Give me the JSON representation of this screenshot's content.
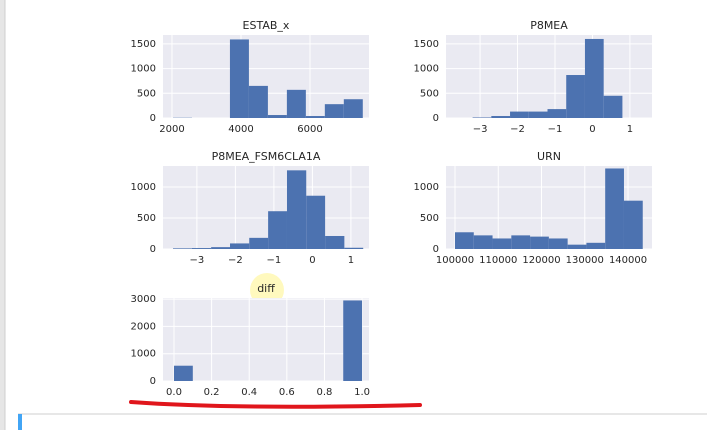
{
  "chart_data": [
    {
      "type": "histogram",
      "title": "ESTAB_x",
      "bins": [
        2030,
        2580,
        3130,
        3680,
        4230,
        4780,
        5330,
        5880,
        6430,
        6980,
        7530
      ],
      "values": [
        5,
        0,
        0,
        1590,
        650,
        60,
        570,
        40,
        280,
        380
      ],
      "color": "#4c72b0",
      "xlim": [
        1740,
        7710
      ],
      "ylim": [
        0,
        1680
      ],
      "xticks": [
        2000,
        4000,
        6000
      ],
      "yticks": [
        0,
        500,
        1000,
        1500
      ],
      "grid": true
    },
    {
      "type": "histogram",
      "title": "P8MEA",
      "bins": [
        -3.2,
        -2.7,
        -2.2,
        -1.7,
        -1.2,
        -0.7,
        -0.2,
        0.3,
        0.8
      ],
      "values": [
        10,
        40,
        130,
        130,
        180,
        870,
        1600,
        450
      ],
      "color": "#4c72b0",
      "xlim": [
        -3.91,
        1.59
      ],
      "ylim": [
        0,
        1680
      ],
      "xticks": [
        {
          "value": -3,
          "label": "−3"
        },
        {
          "value": -2,
          "label": "−2"
        },
        {
          "value": -1,
          "label": "−1"
        },
        0,
        1
      ],
      "yticks": [
        0,
        500,
        1000,
        1500
      ],
      "grid": true
    },
    {
      "type": "histogram",
      "title": "P8MEA_FSM6CLA1A",
      "bins": [
        -3.62,
        -3.13,
        -2.63,
        -2.14,
        -1.64,
        -1.15,
        -0.66,
        -0.16,
        0.33,
        0.83,
        1.32
      ],
      "values": [
        10,
        15,
        30,
        90,
        180,
        610,
        1270,
        860,
        210,
        20
      ],
      "color": "#4c72b0",
      "xlim": [
        -3.88,
        1.47
      ],
      "ylim": [
        0,
        1340
      ],
      "xticks": [
        {
          "value": -3,
          "label": "−3"
        },
        {
          "value": -2,
          "label": "−2"
        },
        {
          "value": -1,
          "label": "−1"
        },
        0,
        1
      ],
      "yticks": [
        0,
        500,
        1000
      ],
      "grid": true
    },
    {
      "type": "histogram",
      "title": "URN",
      "bins": [
        100000,
        104340,
        108680,
        113020,
        117360,
        121700,
        126040,
        130380,
        134720,
        139060,
        143400
      ],
      "values": [
        270,
        220,
        170,
        220,
        200,
        170,
        70,
        100,
        1300,
        780
      ],
      "color": "#4c72b0",
      "xlim": [
        97920,
        145540
      ],
      "ylim": [
        0,
        1340
      ],
      "xticks": [
        100000,
        110000,
        120000,
        130000,
        140000
      ],
      "yticks": [
        0,
        500,
        1000
      ],
      "grid": true
    },
    {
      "type": "histogram",
      "title": "diff",
      "bins": [
        0,
        0.1,
        0.2,
        0.3,
        0.4,
        0.5,
        0.6,
        0.7,
        0.8,
        0.9,
        1.0
      ],
      "values": [
        560,
        0,
        0,
        0,
        0,
        0,
        0,
        0,
        0,
        2950
      ],
      "color": "#4c72b0",
      "xlim": [
        -0.0585,
        1.037
      ],
      "ylim": [
        0,
        3040
      ],
      "xticks": [
        {
          "value": 0,
          "label": "0.0"
        },
        {
          "value": 0.2,
          "label": "0.2"
        },
        {
          "value": 0.4,
          "label": "0.4"
        },
        {
          "value": 0.6,
          "label": "0.6"
        },
        {
          "value": 0.8,
          "label": "0.8"
        },
        {
          "value": 1.0,
          "label": "1.0"
        }
      ],
      "yticks": [
        0,
        1000,
        2000,
        3000
      ],
      "grid": true
    }
  ]
}
